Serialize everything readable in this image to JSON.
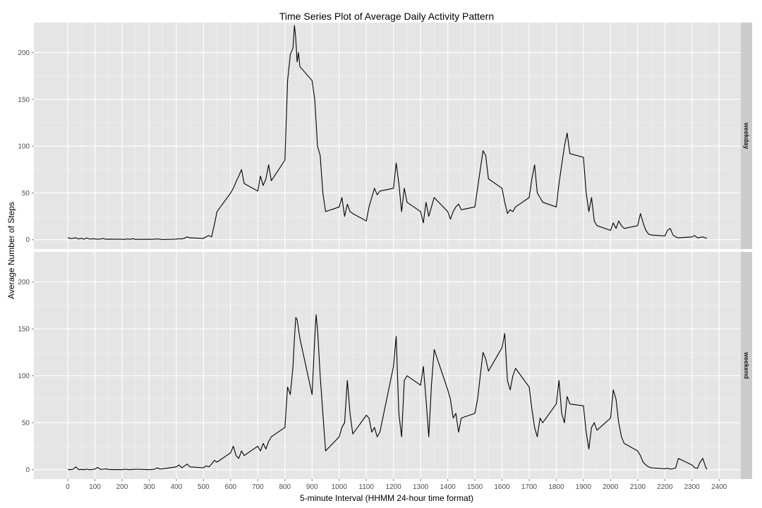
{
  "chart_data": {
    "type": "line",
    "title": "Time Series Plot of Average Daily Activity Pattern",
    "xlabel": "5-minute Interval (HHMM 24-hour time format)",
    "ylabel": "Average Number of Steps",
    "xlim": [
      -125,
      2480
    ],
    "ylim": [
      -10,
      232
    ],
    "x_ticks": [
      0,
      100,
      200,
      300,
      400,
      500,
      600,
      700,
      800,
      900,
      1000,
      1100,
      1200,
      1300,
      1400,
      1500,
      1600,
      1700,
      1800,
      1900,
      2000,
      2100,
      2200,
      2300,
      2400
    ],
    "y_ticks": [
      0,
      50,
      100,
      150,
      200
    ],
    "grid": true,
    "colors": {
      "panel_bg": "#e5e5e5",
      "grid": "#ffffff",
      "strip_bg": "#cccccc",
      "line": "#000000"
    },
    "facets": [
      {
        "name": "weekday",
        "points": [
          [
            0,
            2.3
          ],
          [
            10,
            1.2
          ],
          [
            20,
            1.5
          ],
          [
            30,
            2.0
          ],
          [
            40,
            0.8
          ],
          [
            50,
            1.5
          ],
          [
            60,
            0.5
          ],
          [
            70,
            1.8
          ],
          [
            80,
            0.6
          ],
          [
            90,
            1.0
          ],
          [
            100,
            0.8
          ],
          [
            110,
            0.5
          ],
          [
            120,
            0.7
          ],
          [
            130,
            1.3
          ],
          [
            140,
            0.4
          ],
          [
            150,
            0.6
          ],
          [
            200,
            0.5
          ],
          [
            210,
            0.3
          ],
          [
            220,
            0.8
          ],
          [
            230,
            0.4
          ],
          [
            240,
            1.1
          ],
          [
            250,
            0.3
          ],
          [
            300,
            0.5
          ],
          [
            310,
            0.4
          ],
          [
            320,
            0.6
          ],
          [
            330,
            0.8
          ],
          [
            340,
            0.5
          ],
          [
            350,
            0.2
          ],
          [
            400,
            0.6
          ],
          [
            410,
            1.0
          ],
          [
            420,
            0.8
          ],
          [
            430,
            1.5
          ],
          [
            440,
            3.0
          ],
          [
            450,
            2.0
          ],
          [
            500,
            1.4
          ],
          [
            510,
            3.2
          ],
          [
            520,
            4.5
          ],
          [
            530,
            3.0
          ],
          [
            540,
            16.0
          ],
          [
            550,
            30.0
          ],
          [
            600,
            50.0
          ],
          [
            610,
            55.0
          ],
          [
            620,
            62.0
          ],
          [
            630,
            68.0
          ],
          [
            640,
            75.0
          ],
          [
            650,
            60.0
          ],
          [
            700,
            52.0
          ],
          [
            710,
            68.0
          ],
          [
            720,
            58.0
          ],
          [
            730,
            65.0
          ],
          [
            740,
            80.0
          ],
          [
            750,
            63.0
          ],
          [
            800,
            85.0
          ],
          [
            810,
            170.0
          ],
          [
            820,
            198.0
          ],
          [
            830,
            205.0
          ],
          [
            835,
            229.0
          ],
          [
            840,
            215.0
          ],
          [
            845,
            190.0
          ],
          [
            850,
            200.0
          ],
          [
            855,
            185.0
          ],
          [
            900,
            170.0
          ],
          [
            910,
            150.0
          ],
          [
            920,
            100.0
          ],
          [
            930,
            90.0
          ],
          [
            940,
            50.0
          ],
          [
            950,
            30.0
          ],
          [
            1000,
            35.0
          ],
          [
            1010,
            45.0
          ],
          [
            1020,
            25.0
          ],
          [
            1030,
            38.0
          ],
          [
            1040,
            30.0
          ],
          [
            1050,
            28.0
          ],
          [
            1100,
            20.0
          ],
          [
            1110,
            35.0
          ],
          [
            1120,
            45.0
          ],
          [
            1130,
            55.0
          ],
          [
            1140,
            48.0
          ],
          [
            1150,
            52.0
          ],
          [
            1200,
            55.0
          ],
          [
            1210,
            82.0
          ],
          [
            1220,
            60.0
          ],
          [
            1230,
            30.0
          ],
          [
            1240,
            55.0
          ],
          [
            1250,
            40.0
          ],
          [
            1300,
            30.0
          ],
          [
            1310,
            18.0
          ],
          [
            1320,
            40.0
          ],
          [
            1330,
            25.0
          ],
          [
            1340,
            35.0
          ],
          [
            1350,
            45.0
          ],
          [
            1400,
            30.0
          ],
          [
            1410,
            22.0
          ],
          [
            1420,
            30.0
          ],
          [
            1430,
            35.0
          ],
          [
            1440,
            38.0
          ],
          [
            1450,
            32.0
          ],
          [
            1500,
            35.0
          ],
          [
            1510,
            55.0
          ],
          [
            1520,
            75.0
          ],
          [
            1530,
            95.0
          ],
          [
            1540,
            90.0
          ],
          [
            1550,
            65.0
          ],
          [
            1600,
            55.0
          ],
          [
            1610,
            40.0
          ],
          [
            1620,
            28.0
          ],
          [
            1630,
            32.0
          ],
          [
            1640,
            30.0
          ],
          [
            1650,
            35.0
          ],
          [
            1700,
            45.0
          ],
          [
            1710,
            65.0
          ],
          [
            1720,
            80.0
          ],
          [
            1730,
            50.0
          ],
          [
            1740,
            45.0
          ],
          [
            1750,
            40.0
          ],
          [
            1800,
            35.0
          ],
          [
            1810,
            60.0
          ],
          [
            1820,
            80.0
          ],
          [
            1830,
            100.0
          ],
          [
            1840,
            114.0
          ],
          [
            1850,
            92.0
          ],
          [
            1900,
            88.0
          ],
          [
            1910,
            50.0
          ],
          [
            1920,
            30.0
          ],
          [
            1930,
            45.0
          ],
          [
            1940,
            20.0
          ],
          [
            1950,
            15.0
          ],
          [
            2000,
            10.0
          ],
          [
            2010,
            18.0
          ],
          [
            2020,
            12.0
          ],
          [
            2030,
            20.0
          ],
          [
            2040,
            15.0
          ],
          [
            2050,
            12.0
          ],
          [
            2100,
            15.0
          ],
          [
            2110,
            28.0
          ],
          [
            2120,
            18.0
          ],
          [
            2130,
            10.0
          ],
          [
            2140,
            6.0
          ],
          [
            2150,
            5.0
          ],
          [
            2200,
            4.0
          ],
          [
            2210,
            10.0
          ],
          [
            2220,
            12.0
          ],
          [
            2230,
            5.0
          ],
          [
            2240,
            3.0
          ],
          [
            2250,
            2.0
          ],
          [
            2300,
            3.0
          ],
          [
            2310,
            4.5
          ],
          [
            2320,
            2.0
          ],
          [
            2330,
            2.5
          ],
          [
            2340,
            3.0
          ],
          [
            2350,
            2.0
          ],
          [
            2355,
            1.5
          ]
        ]
      },
      {
        "name": "weekend",
        "points": [
          [
            0,
            0.2
          ],
          [
            10,
            0.0
          ],
          [
            20,
            0.5
          ],
          [
            30,
            3.0
          ],
          [
            40,
            0.0
          ],
          [
            50,
            0.3
          ],
          [
            60,
            0.0
          ],
          [
            70,
            0.5
          ],
          [
            80,
            0.0
          ],
          [
            90,
            0.2
          ],
          [
            100,
            0.5
          ],
          [
            110,
            2.5
          ],
          [
            120,
            0.3
          ],
          [
            130,
            0.5
          ],
          [
            140,
            0.8
          ],
          [
            150,
            0.2
          ],
          [
            200,
            0.0
          ],
          [
            210,
            0.5
          ],
          [
            220,
            0.2
          ],
          [
            230,
            0.0
          ],
          [
            240,
            0.3
          ],
          [
            250,
            0.5
          ],
          [
            300,
            0.0
          ],
          [
            310,
            0.2
          ],
          [
            320,
            0.5
          ],
          [
            330,
            2.0
          ],
          [
            340,
            0.5
          ],
          [
            350,
            1.0
          ],
          [
            400,
            3.0
          ],
          [
            410,
            5.0
          ],
          [
            420,
            2.0
          ],
          [
            430,
            4.0
          ],
          [
            440,
            6.0
          ],
          [
            450,
            3.0
          ],
          [
            500,
            2.0
          ],
          [
            510,
            4.0
          ],
          [
            520,
            3.0
          ],
          [
            530,
            6.0
          ],
          [
            540,
            10.0
          ],
          [
            550,
            8.0
          ],
          [
            600,
            18.0
          ],
          [
            610,
            25.0
          ],
          [
            620,
            15.0
          ],
          [
            630,
            12.0
          ],
          [
            640,
            20.0
          ],
          [
            650,
            15.0
          ],
          [
            700,
            25.0
          ],
          [
            710,
            20.0
          ],
          [
            720,
            28.0
          ],
          [
            730,
            22.0
          ],
          [
            740,
            30.0
          ],
          [
            750,
            35.0
          ],
          [
            800,
            45.0
          ],
          [
            810,
            88.0
          ],
          [
            820,
            80.0
          ],
          [
            830,
            110.0
          ],
          [
            835,
            140.0
          ],
          [
            840,
            162.0
          ],
          [
            845,
            160.0
          ],
          [
            850,
            150.0
          ],
          [
            855,
            140.0
          ],
          [
            900,
            80.0
          ],
          [
            910,
            140.0
          ],
          [
            915,
            165.0
          ],
          [
            920,
            150.0
          ],
          [
            930,
            100.0
          ],
          [
            940,
            60.0
          ],
          [
            950,
            20.0
          ],
          [
            1000,
            35.0
          ],
          [
            1010,
            45.0
          ],
          [
            1020,
            50.0
          ],
          [
            1030,
            95.0
          ],
          [
            1040,
            60.0
          ],
          [
            1050,
            38.0
          ],
          [
            1100,
            58.0
          ],
          [
            1110,
            55.0
          ],
          [
            1120,
            40.0
          ],
          [
            1130,
            45.0
          ],
          [
            1140,
            35.0
          ],
          [
            1150,
            40.0
          ],
          [
            1200,
            110.0
          ],
          [
            1210,
            142.0
          ],
          [
            1220,
            60.0
          ],
          [
            1230,
            35.0
          ],
          [
            1240,
            95.0
          ],
          [
            1250,
            100.0
          ],
          [
            1300,
            90.0
          ],
          [
            1310,
            110.0
          ],
          [
            1320,
            75.0
          ],
          [
            1330,
            35.0
          ],
          [
            1340,
            90.0
          ],
          [
            1350,
            128.0
          ],
          [
            1400,
            85.0
          ],
          [
            1410,
            75.0
          ],
          [
            1420,
            55.0
          ],
          [
            1430,
            60.0
          ],
          [
            1440,
            40.0
          ],
          [
            1450,
            55.0
          ],
          [
            1500,
            60.0
          ],
          [
            1510,
            75.0
          ],
          [
            1520,
            100.0
          ],
          [
            1530,
            125.0
          ],
          [
            1540,
            118.0
          ],
          [
            1550,
            105.0
          ],
          [
            1600,
            130.0
          ],
          [
            1610,
            145.0
          ],
          [
            1620,
            95.0
          ],
          [
            1630,
            85.0
          ],
          [
            1640,
            100.0
          ],
          [
            1650,
            108.0
          ],
          [
            1700,
            88.0
          ],
          [
            1710,
            65.0
          ],
          [
            1720,
            45.0
          ],
          [
            1730,
            35.0
          ],
          [
            1740,
            55.0
          ],
          [
            1750,
            50.0
          ],
          [
            1800,
            70.0
          ],
          [
            1810,
            95.0
          ],
          [
            1820,
            60.0
          ],
          [
            1830,
            50.0
          ],
          [
            1840,
            78.0
          ],
          [
            1850,
            70.0
          ],
          [
            1900,
            68.0
          ],
          [
            1910,
            40.0
          ],
          [
            1920,
            22.0
          ],
          [
            1930,
            45.0
          ],
          [
            1940,
            50.0
          ],
          [
            1950,
            42.0
          ],
          [
            2000,
            55.0
          ],
          [
            2010,
            85.0
          ],
          [
            2020,
            75.0
          ],
          [
            2030,
            50.0
          ],
          [
            2040,
            35.0
          ],
          [
            2050,
            28.0
          ],
          [
            2100,
            20.0
          ],
          [
            2110,
            15.0
          ],
          [
            2120,
            8.0
          ],
          [
            2130,
            5.0
          ],
          [
            2140,
            3.0
          ],
          [
            2150,
            2.0
          ],
          [
            2200,
            1.0
          ],
          [
            2210,
            1.5
          ],
          [
            2220,
            0.5
          ],
          [
            2230,
            1.0
          ],
          [
            2240,
            2.0
          ],
          [
            2250,
            12.0
          ],
          [
            2300,
            5.0
          ],
          [
            2310,
            2.0
          ],
          [
            2320,
            1.5
          ],
          [
            2330,
            8.0
          ],
          [
            2340,
            12.0
          ],
          [
            2350,
            3.0
          ],
          [
            2355,
            0.5
          ]
        ]
      }
    ]
  }
}
